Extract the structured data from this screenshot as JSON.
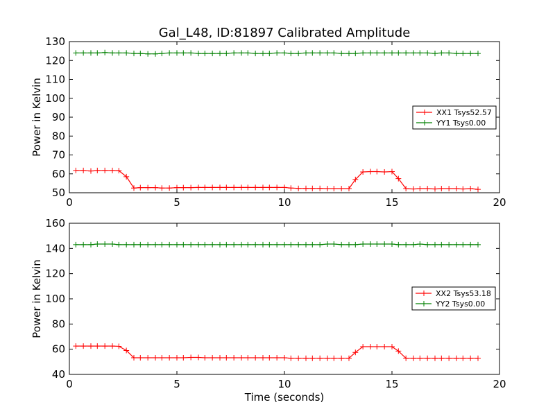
{
  "title": "Gal_L48, ID:81897 Calibrated Amplitude",
  "colors": {
    "xx": "#ff0000",
    "yy": "#008000",
    "axes": "#000000",
    "background": "#ffffff"
  },
  "chart_data": [
    {
      "type": "line",
      "ylabel": "Power in Kelvin",
      "xlabel": "",
      "xlim": [
        0,
        20
      ],
      "ylim": [
        50,
        130
      ],
      "xticks": [
        0,
        5,
        10,
        15,
        20
      ],
      "yticks": [
        50,
        60,
        70,
        80,
        90,
        100,
        110,
        120,
        130
      ],
      "grid": false,
      "legend_position": "center-right",
      "x": [
        0.3,
        0.65,
        1.0,
        1.3,
        1.65,
        2.0,
        2.3,
        2.65,
        3.0,
        3.3,
        3.65,
        4.0,
        4.3,
        4.65,
        5.0,
        5.3,
        5.65,
        6.0,
        6.3,
        6.65,
        7.0,
        7.3,
        7.65,
        8.0,
        8.3,
        8.65,
        9.0,
        9.3,
        9.65,
        10.0,
        10.3,
        10.65,
        11.0,
        11.3,
        11.65,
        12.0,
        12.3,
        12.65,
        13.0,
        13.3,
        13.65,
        14.0,
        14.3,
        14.65,
        15.0,
        15.3,
        15.65,
        16.0,
        16.3,
        16.65,
        17.0,
        17.3,
        17.65,
        18.0,
        18.3,
        18.65,
        19.0
      ],
      "series": [
        {
          "name": "XX1 Tsys52.57",
          "color": "#ff0000",
          "values": [
            61.8,
            61.8,
            61.5,
            61.8,
            61.8,
            61.8,
            61.7,
            58.5,
            52.5,
            52.7,
            52.7,
            52.7,
            52.5,
            52.5,
            52.7,
            52.7,
            52.7,
            52.8,
            52.8,
            52.8,
            52.8,
            52.8,
            52.8,
            52.8,
            52.8,
            52.8,
            52.8,
            52.8,
            52.8,
            52.8,
            52.5,
            52.3,
            52.3,
            52.3,
            52.3,
            52.2,
            52.2,
            52.2,
            52.2,
            57.0,
            61.0,
            61.2,
            61.2,
            61.0,
            61.2,
            57.5,
            52.2,
            52.0,
            52.2,
            52.2,
            52.0,
            52.2,
            52.2,
            52.2,
            52.0,
            52.2,
            51.8
          ]
        },
        {
          "name": "YY1 Tsys0.00",
          "color": "#008000",
          "values": [
            124.0,
            124.0,
            124.0,
            124.0,
            124.2,
            124.0,
            124.0,
            124.0,
            123.7,
            123.7,
            123.5,
            123.5,
            123.7,
            124.0,
            124.0,
            124.0,
            124.0,
            123.7,
            123.7,
            123.7,
            123.7,
            123.7,
            124.0,
            124.0,
            124.0,
            123.7,
            123.7,
            123.7,
            124.0,
            124.0,
            123.7,
            123.7,
            124.0,
            124.0,
            124.0,
            124.0,
            124.0,
            123.7,
            123.7,
            123.7,
            124.0,
            124.0,
            124.0,
            124.0,
            124.0,
            124.0,
            124.0,
            124.0,
            124.0,
            124.0,
            123.7,
            124.0,
            124.0,
            123.7,
            123.7,
            123.7,
            123.7
          ]
        }
      ]
    },
    {
      "type": "line",
      "ylabel": "Power in Kelvin",
      "xlabel": "Time (seconds)",
      "xlim": [
        0,
        20
      ],
      "ylim": [
        40,
        160
      ],
      "xticks": [
        0,
        5,
        10,
        15,
        20
      ],
      "yticks": [
        40,
        60,
        80,
        100,
        120,
        140,
        160
      ],
      "grid": false,
      "legend_position": "center-right",
      "x": [
        0.3,
        0.65,
        1.0,
        1.3,
        1.65,
        2.0,
        2.3,
        2.65,
        3.0,
        3.3,
        3.65,
        4.0,
        4.3,
        4.65,
        5.0,
        5.3,
        5.65,
        6.0,
        6.3,
        6.65,
        7.0,
        7.3,
        7.65,
        8.0,
        8.3,
        8.65,
        9.0,
        9.3,
        9.65,
        10.0,
        10.3,
        10.65,
        11.0,
        11.3,
        11.65,
        12.0,
        12.3,
        12.65,
        13.0,
        13.3,
        13.65,
        14.0,
        14.3,
        14.65,
        15.0,
        15.3,
        15.65,
        16.0,
        16.3,
        16.65,
        17.0,
        17.3,
        17.65,
        18.0,
        18.3,
        18.65,
        19.0
      ],
      "series": [
        {
          "name": "XX2 Tsys53.18",
          "color": "#ff0000",
          "values": [
            62.5,
            62.5,
            62.5,
            62.5,
            62.5,
            62.5,
            62.3,
            59.0,
            53.2,
            53.2,
            53.2,
            53.2,
            53.2,
            53.2,
            53.2,
            53.2,
            53.5,
            53.5,
            53.2,
            53.2,
            53.2,
            53.2,
            53.2,
            53.2,
            53.2,
            53.2,
            53.2,
            53.2,
            53.2,
            53.2,
            52.8,
            52.8,
            52.8,
            52.8,
            52.8,
            52.8,
            52.8,
            52.8,
            52.8,
            57.5,
            62.0,
            62.0,
            62.0,
            62.0,
            62.0,
            58.5,
            52.8,
            52.8,
            52.8,
            52.8,
            52.8,
            52.8,
            52.8,
            52.8,
            52.8,
            52.8,
            52.8
          ]
        },
        {
          "name": "YY2 Tsys0.00",
          "color": "#008000",
          "values": [
            143.0,
            143.0,
            143.0,
            143.5,
            143.5,
            143.5,
            143.0,
            143.0,
            143.0,
            143.0,
            143.0,
            143.0,
            143.0,
            143.0,
            143.0,
            143.0,
            143.0,
            143.0,
            143.0,
            143.0,
            143.0,
            143.0,
            143.0,
            143.0,
            143.0,
            143.0,
            143.0,
            143.0,
            143.0,
            143.0,
            143.0,
            143.0,
            143.0,
            143.0,
            143.0,
            143.5,
            143.5,
            143.0,
            143.0,
            143.0,
            143.5,
            143.5,
            143.5,
            143.5,
            143.5,
            143.0,
            143.0,
            143.0,
            143.5,
            143.0,
            143.0,
            143.0,
            143.0,
            143.0,
            143.0,
            143.0,
            143.0
          ]
        }
      ]
    }
  ]
}
